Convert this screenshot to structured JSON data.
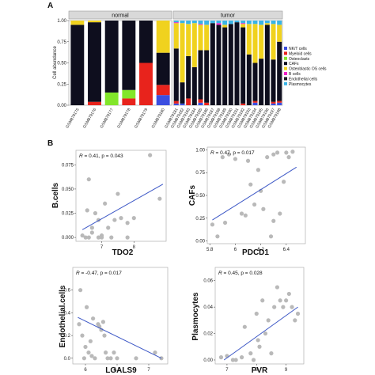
{
  "panel_labels": [
    "A",
    "B"
  ],
  "chart_data": [
    {
      "type": "bar",
      "stacked": true,
      "ylabel": "Cell abundance",
      "xlabel": "",
      "ylim": [
        0,
        1
      ],
      "yticks": [
        "0.00",
        "0.25",
        "0.50",
        "0.75",
        "1.00"
      ],
      "groups": [
        {
          "name": "normal",
          "count": 6
        },
        {
          "name": "tumor",
          "count": 18
        }
      ],
      "categories": [
        "GSM879175",
        "GSM879176",
        "GSM879177",
        "GSM879178",
        "GSM879179",
        "GSM879180",
        "GSM879181",
        "GSM879182",
        "GSM879183",
        "GSM879184",
        "GSM879185",
        "GSM879186",
        "GSM879187",
        "GSM879188",
        "GSM879189",
        "GSM879190",
        "GSM879191",
        "GSM879192",
        "GSM879193",
        "GSM879194",
        "GSM879195",
        "GSM879196",
        "GSM879197",
        "GSM879198"
      ],
      "legend_position": "right",
      "series": [
        {
          "name": "NK/T cells",
          "color": "#3b4ee0",
          "values": [
            0,
            0,
            0,
            0,
            0,
            0.12,
            0.02,
            0.02,
            0,
            0,
            0.03,
            0,
            0,
            0,
            0,
            0,
            0,
            0,
            0,
            0.03,
            0,
            0,
            0.02,
            0.03
          ]
        },
        {
          "name": "Myeloid cells",
          "color": "#e8231c",
          "values": [
            0,
            0.04,
            0,
            0.08,
            0.5,
            0.12,
            0.03,
            0,
            0.08,
            0,
            0.04,
            0.03,
            0,
            0,
            0,
            0,
            0,
            0.02,
            0,
            0.02,
            0,
            0,
            0.02,
            0.02
          ]
        },
        {
          "name": "Osteoclasts",
          "color": "#82e62a",
          "values": [
            0,
            0,
            0.15,
            0.1,
            0,
            0,
            0,
            0,
            0,
            0,
            0,
            0,
            0,
            0,
            0,
            0,
            0,
            0,
            0,
            0,
            0,
            0,
            0,
            0
          ]
        },
        {
          "name": "CAFs",
          "color": "#0e0e1e",
          "values": [
            0.95,
            0.94,
            0.85,
            0.82,
            0.5,
            0.38,
            0.62,
            0.25,
            0.5,
            0.45,
            0.58,
            0.62,
            0.97,
            0.95,
            0.92,
            0.96,
            0.98,
            0.9,
            0.6,
            0.45,
            0.55,
            0.95,
            0.5,
            0.7
          ]
        },
        {
          "name": "Osteoblastic OS cells",
          "color": "#f0d21e",
          "values": [
            0.05,
            0.02,
            0,
            0,
            0,
            0.38,
            0.3,
            0.7,
            0.38,
            0.52,
            0.3,
            0.3,
            0,
            0,
            0.03,
            0,
            0,
            0.04,
            0.36,
            0.46,
            0.4,
            0.02,
            0.42,
            0.2
          ]
        },
        {
          "name": "B cells",
          "color": "#f020c8",
          "values": [
            0,
            0,
            0,
            0,
            0,
            0,
            0.01,
            0,
            0,
            0,
            0.01,
            0,
            0,
            0.02,
            0,
            0,
            0,
            0.01,
            0,
            0,
            0,
            0,
            0,
            0
          ]
        },
        {
          "name": "Endothelial cells",
          "color": "#1c1c24",
          "values": [
            0,
            0,
            0,
            0,
            0,
            0,
            0,
            0,
            0,
            0,
            0,
            0,
            0,
            0,
            0,
            0,
            0,
            0,
            0,
            0,
            0,
            0,
            0,
            0
          ]
        },
        {
          "name": "Plasmocytes",
          "color": "#3ab4e6",
          "values": [
            0,
            0,
            0,
            0,
            0,
            0,
            0.02,
            0.03,
            0.04,
            0.03,
            0.04,
            0.05,
            0.03,
            0.03,
            0.05,
            0.04,
            0.02,
            0.03,
            0.04,
            0.04,
            0.05,
            0.03,
            0.04,
            0.05
          ]
        }
      ]
    },
    {
      "type": "scatter",
      "xlabel": "TDO2",
      "ylabel": "B.cells",
      "annotation": {
        "r_label": "R",
        "r_text": " = 0.41, p = 0.043"
      },
      "xlim": [
        6.2,
        9.0
      ],
      "ylim": [
        -0.004,
        0.09
      ],
      "xticks": [
        7,
        8
      ],
      "yticks": [
        "0.000",
        "0.025",
        "0.050",
        "0.075"
      ],
      "ytick_values": [
        0,
        0.025,
        0.05,
        0.075
      ],
      "x": [
        6.4,
        6.5,
        6.6,
        6.7,
        6.9,
        7.0,
        7.3,
        7.6,
        7.8,
        8.0,
        7.5,
        6.6,
        6.8,
        7.1,
        7.4,
        8.5,
        6.7,
        7.0,
        7.8,
        8.8,
        6.55,
        7.2,
        6.9
      ],
      "y": [
        0.002,
        0.0,
        0.0,
        0.01,
        0.0,
        0.0,
        0.0,
        0.02,
        0.015,
        0.02,
        0.045,
        0.06,
        0.025,
        0.035,
        0.018,
        0.085,
        0.005,
        0.002,
        0.0,
        0.04,
        0.028,
        0.01,
        0.018
      ],
      "fit": [
        [
          6.4,
          0.008
        ],
        [
          8.9,
          0.055
        ]
      ]
    },
    {
      "type": "scatter",
      "xlabel": "PDCD1",
      "ylabel": "CAFs",
      "annotation": {
        "r_label": "R",
        "r_text": " = 0.47, p = 0.017"
      },
      "xlim": [
        5.78,
        6.55
      ],
      "ylim": [
        -0.03,
        1.03
      ],
      "xticks": [
        5.8,
        6.0,
        6.2,
        6.4
      ],
      "yticks": [
        "0.00",
        "0.25",
        "0.50",
        "0.75",
        "1.00"
      ],
      "ytick_values": [
        0,
        0.25,
        0.5,
        0.75,
        1.0
      ],
      "x": [
        5.82,
        5.86,
        5.9,
        5.95,
        6.0,
        6.05,
        6.1,
        6.15,
        6.2,
        6.25,
        6.3,
        6.35,
        6.4,
        6.45,
        5.92,
        6.12,
        6.22,
        6.28,
        6.33,
        6.38,
        6.42,
        6.18,
        6.08,
        6.3
      ],
      "y": [
        0.18,
        0.05,
        0.92,
        0.95,
        0.9,
        0.3,
        0.88,
        0.4,
        0.55,
        0.92,
        0.95,
        0.3,
        0.97,
        0.98,
        0.2,
        0.62,
        0.35,
        0.05,
        0.97,
        0.65,
        0.92,
        0.78,
        0.28,
        0.22
      ],
      "fit": [
        [
          5.82,
          0.23
        ],
        [
          6.48,
          0.81
        ]
      ]
    },
    {
      "type": "scatter",
      "xlabel": "LGALS9",
      "ylabel": "Endothelial.cells",
      "annotation": {
        "r_label": "R",
        "r_text": " = -0.47, p = 0.017"
      },
      "xlim": [
        5.8,
        7.3
      ],
      "ylim": [
        -0.05,
        0.8
      ],
      "xticks": [
        6.0,
        6.5,
        7.0
      ],
      "yticks": [
        "0.0",
        "0.2",
        "0.4",
        "0.6"
      ],
      "ytick_values": [
        0,
        0.2,
        0.4,
        0.6
      ],
      "x": [
        5.9,
        5.95,
        6.0,
        6.05,
        6.1,
        6.15,
        6.2,
        6.25,
        6.3,
        6.35,
        6.4,
        5.92,
        6.02,
        6.12,
        6.22,
        6.32,
        6.5,
        6.8,
        7.2,
        5.98,
        6.08,
        6.28,
        6.45,
        7.1
      ],
      "y": [
        0.3,
        0.2,
        0.1,
        0.05,
        0.02,
        0.0,
        0.3,
        0.25,
        0.2,
        0.0,
        0.0,
        0.6,
        0.45,
        0.35,
        0.28,
        0.05,
        0.0,
        0.0,
        0.0,
        0.0,
        0.15,
        0.32,
        0.05,
        0.05
      ],
      "fit": [
        [
          5.88,
          0.36
        ],
        [
          7.2,
          0.0
        ]
      ]
    },
    {
      "type": "scatter",
      "xlabel": "PVR",
      "ylabel": "Plasmocytes",
      "annotation": {
        "r_label": "R",
        "r_text": " = 0.45, p = 0.028"
      },
      "xlim": [
        6.6,
        9.6
      ],
      "ylim": [
        -0.003,
        0.07
      ],
      "xticks": [
        7,
        8,
        9
      ],
      "yticks": [
        "0.00",
        "0.02",
        "0.04",
        "0.06"
      ],
      "ytick_values": [
        0,
        0.02,
        0.04,
        0.06
      ],
      "x": [
        6.8,
        7.0,
        7.2,
        7.5,
        7.8,
        8.0,
        8.2,
        8.4,
        8.6,
        8.8,
        9.0,
        9.2,
        9.4,
        7.9,
        8.1,
        8.5,
        8.9,
        9.1,
        7.3,
        8.3,
        8.7,
        9.3,
        7.6,
        8.05
      ],
      "y": [
        0.002,
        0.003,
        0.0,
        0.002,
        0.005,
        0.035,
        0.045,
        0.03,
        0.04,
        0.045,
        0.045,
        0.04,
        0.035,
        0.0,
        0.01,
        0.005,
        0.04,
        0.05,
        0.0,
        0.02,
        0.055,
        0.03,
        0.025,
        0.015
      ],
      "fit": [
        [
          6.9,
          0.0
        ],
        [
          9.4,
          0.04
        ]
      ]
    }
  ]
}
